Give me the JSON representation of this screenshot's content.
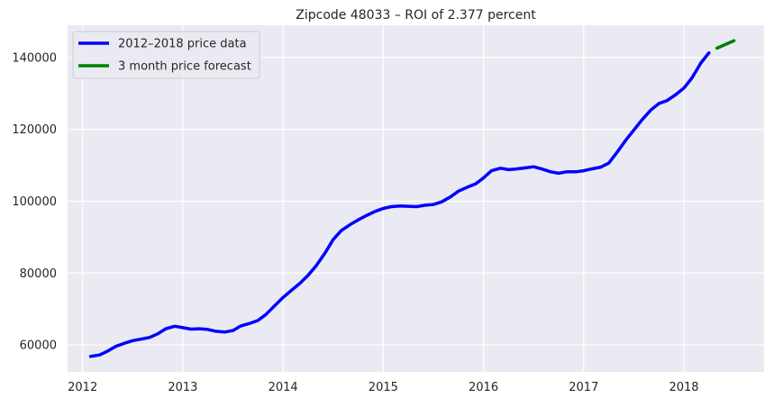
{
  "chart_data": {
    "type": "line",
    "title": "Zipcode 48033 – ROI of 2.377 percent",
    "xlabel": "",
    "ylabel": "",
    "xlim": [
      2011.85,
      2018.8
    ],
    "ylim": [
      52500,
      149000
    ],
    "x_ticks": [
      2012,
      2013,
      2014,
      2015,
      2016,
      2017,
      2018
    ],
    "x_tick_labels": [
      "2012",
      "2013",
      "2014",
      "2015",
      "2016",
      "2017",
      "2018"
    ],
    "y_ticks": [
      60000,
      80000,
      100000,
      120000,
      140000
    ],
    "y_tick_labels": [
      "60000",
      "80000",
      "100000",
      "120000",
      "140000"
    ],
    "grid": true,
    "legend": "upper-left",
    "series": [
      {
        "name": "2012–2018 price data",
        "color": "#0000ff",
        "x": [
          2012.08,
          2012.17,
          2012.25,
          2012.33,
          2012.42,
          2012.5,
          2012.58,
          2012.67,
          2012.75,
          2012.83,
          2012.92,
          2013.0,
          2013.08,
          2013.17,
          2013.25,
          2013.33,
          2013.42,
          2013.5,
          2013.58,
          2013.67,
          2013.75,
          2013.83,
          2013.92,
          2014.0,
          2014.08,
          2014.17,
          2014.25,
          2014.33,
          2014.42,
          2014.5,
          2014.58,
          2014.67,
          2014.75,
          2014.83,
          2014.92,
          2015.0,
          2015.08,
          2015.17,
          2015.25,
          2015.33,
          2015.42,
          2015.5,
          2015.58,
          2015.67,
          2015.75,
          2015.83,
          2015.92,
          2016.0,
          2016.08,
          2016.17,
          2016.25,
          2016.33,
          2016.42,
          2016.5,
          2016.58,
          2016.67,
          2016.75,
          2016.83,
          2016.92,
          2017.0,
          2017.08,
          2017.17,
          2017.25,
          2017.33,
          2017.42,
          2017.5,
          2017.58,
          2017.67,
          2017.75,
          2017.83,
          2017.92,
          2018.0,
          2018.08,
          2018.17,
          2018.25
        ],
        "y": [
          56800,
          57200,
          58300,
          59600,
          60500,
          61200,
          61600,
          62100,
          63100,
          64500,
          65200,
          64800,
          64400,
          64500,
          64300,
          63800,
          63600,
          64000,
          65300,
          66000,
          66800,
          68500,
          71000,
          73200,
          75100,
          77200,
          79400,
          82000,
          85600,
          89300,
          91800,
          93500,
          94800,
          96000,
          97200,
          98000,
          98500,
          98700,
          98600,
          98500,
          98900,
          99100,
          99800,
          101200,
          102800,
          103800,
          104800,
          106500,
          108500,
          109200,
          108800,
          109000,
          109300,
          109600,
          109000,
          108200,
          107800,
          108200,
          108200,
          108500,
          109000,
          109500,
          110600,
          113500,
          117000,
          119800,
          122600,
          125400,
          127200,
          128000,
          129700,
          131500,
          134300,
          138500,
          141300
        ]
      },
      {
        "name": "3 month price forecast",
        "color": "#008000",
        "x": [
          2018.33,
          2018.42,
          2018.5
        ],
        "y": [
          142600,
          143700,
          144700
        ]
      }
    ]
  }
}
